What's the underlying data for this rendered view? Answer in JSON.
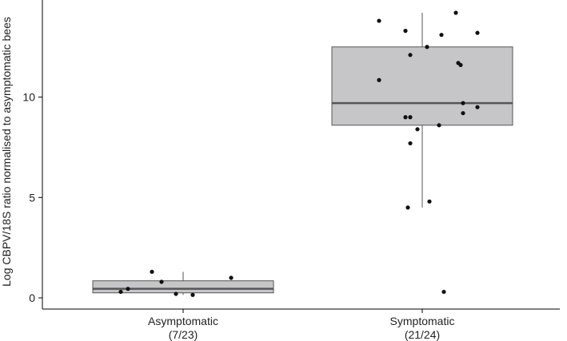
{
  "chart_data": {
    "type": "box",
    "title": "",
    "xlabel": "",
    "ylabel": "Log CBPV/18S ratio normalised to asymptomatic bees",
    "ylim": [
      -0.5,
      14.5
    ],
    "yticks": [
      0,
      5,
      10
    ],
    "grid": false,
    "legend": "none",
    "colors": {
      "box_fill": "#c6c6c8",
      "box_stroke": "#555555",
      "point": "#111111"
    },
    "groups": [
      {
        "label_line1": "Asymptomatic",
        "label_line2": "(7/23)",
        "box": {
          "min": 0.15,
          "q1": 0.25,
          "median": 0.45,
          "q3": 0.85,
          "max": 1.3
        },
        "points": [
          {
            "x": -0.26,
            "y": 0.3
          },
          {
            "x": -0.23,
            "y": 0.45
          },
          {
            "x": -0.13,
            "y": 1.3
          },
          {
            "x": -0.09,
            "y": 0.8
          },
          {
            "x": -0.03,
            "y": 0.2
          },
          {
            "x": 0.04,
            "y": 0.15
          },
          {
            "x": 0.2,
            "y": 1.0
          }
        ]
      },
      {
        "label_line1": "Symptomatic",
        "label_line2": "(21/24)",
        "box": {
          "min": 4.5,
          "q1": 8.6,
          "median": 9.7,
          "q3": 12.5,
          "max": 14.2
        },
        "points": [
          {
            "x": -0.18,
            "y": 13.8
          },
          {
            "x": -0.07,
            "y": 13.3
          },
          {
            "x": -0.05,
            "y": 12.1
          },
          {
            "x": 0.02,
            "y": 12.5
          },
          {
            "x": 0.08,
            "y": 13.1
          },
          {
            "x": 0.14,
            "y": 14.2
          },
          {
            "x": 0.23,
            "y": 13.2
          },
          {
            "x": -0.18,
            "y": 10.85
          },
          {
            "x": 0.15,
            "y": 11.7
          },
          {
            "x": 0.16,
            "y": 11.6
          },
          {
            "x": 0.17,
            "y": 9.7
          },
          {
            "x": 0.23,
            "y": 9.5
          },
          {
            "x": 0.17,
            "y": 9.2
          },
          {
            "x": -0.07,
            "y": 9.0
          },
          {
            "x": -0.05,
            "y": 9.0
          },
          {
            "x": 0.07,
            "y": 8.6
          },
          {
            "x": -0.02,
            "y": 8.4
          },
          {
            "x": -0.05,
            "y": 7.7
          },
          {
            "x": 0.03,
            "y": 4.8
          },
          {
            "x": -0.06,
            "y": 4.5
          },
          {
            "x": 0.09,
            "y": 0.3
          }
        ]
      }
    ]
  }
}
